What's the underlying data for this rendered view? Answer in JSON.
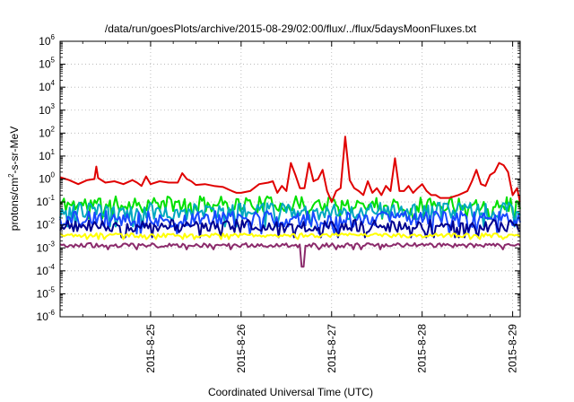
{
  "chart_data": {
    "type": "line",
    "title": "/data/run/goesPlots/archive/2015-08-29/02:00/flux/../flux/5daysMoonFluxes.txt",
    "xlabel": "Coordinated Universal Time (UTC)",
    "ylabel_parts": {
      "pre": "protons/cm",
      "sup": "2",
      "post": "-s-sr-MeV"
    },
    "x_range": [
      "2015-08-24 00:00",
      "2015-08-29 02:00"
    ],
    "x_tick_labels": [
      "2015-8-25",
      "2015-8-26",
      "2015-8-27",
      "2015-8-28",
      "2015-8-29"
    ],
    "x_tick_days": [
      1,
      2,
      3,
      4,
      5
    ],
    "y_scale": "log",
    "ylim": [
      1e-06,
      1000000.0
    ],
    "y_tick_exponents": [
      -6,
      -5,
      -4,
      -3,
      -2,
      -1,
      0,
      1,
      2,
      3,
      4,
      5,
      6
    ],
    "y_tick_base": "10",
    "grid": true,
    "series": [
      {
        "color": "#e00000",
        "values": [
          [
            0.0,
            1.2
          ],
          [
            0.1,
            0.9
          ],
          [
            0.2,
            0.6
          ],
          [
            0.3,
            0.9
          ],
          [
            0.38,
            1.0
          ],
          [
            0.4,
            3.5
          ],
          [
            0.42,
            1.1
          ],
          [
            0.5,
            0.7
          ],
          [
            0.6,
            0.8
          ],
          [
            0.7,
            0.6
          ],
          [
            0.8,
            0.9
          ],
          [
            0.85,
            0.7
          ],
          [
            0.9,
            0.5
          ],
          [
            0.95,
            1.3
          ],
          [
            1.0,
            0.6
          ],
          [
            1.1,
            0.8
          ],
          [
            1.2,
            0.7
          ],
          [
            1.3,
            0.7
          ],
          [
            1.35,
            1.8
          ],
          [
            1.4,
            1.0
          ],
          [
            1.45,
            0.8
          ],
          [
            1.5,
            0.55
          ],
          [
            1.6,
            0.6
          ],
          [
            1.7,
            0.5
          ],
          [
            1.8,
            0.45
          ],
          [
            1.9,
            0.3
          ],
          [
            1.95,
            0.25
          ],
          [
            2.0,
            0.25
          ],
          [
            2.1,
            0.3
          ],
          [
            2.2,
            0.6
          ],
          [
            2.3,
            0.7
          ],
          [
            2.35,
            0.8
          ],
          [
            2.4,
            0.25
          ],
          [
            2.45,
            0.5
          ],
          [
            2.5,
            0.3
          ],
          [
            2.55,
            5.0
          ],
          [
            2.6,
            1.5
          ],
          [
            2.65,
            0.4
          ],
          [
            2.7,
            0.4
          ],
          [
            2.75,
            5.0
          ],
          [
            2.8,
            0.8
          ],
          [
            2.85,
            1.0
          ],
          [
            2.9,
            2.5
          ],
          [
            2.95,
            0.3
          ],
          [
            3.0,
            0.1
          ],
          [
            3.05,
            0.3
          ],
          [
            3.1,
            0.4
          ],
          [
            3.15,
            70
          ],
          [
            3.2,
            0.9
          ],
          [
            3.25,
            0.4
          ],
          [
            3.3,
            0.3
          ],
          [
            3.35,
            0.2
          ],
          [
            3.4,
            0.8
          ],
          [
            3.45,
            0.25
          ],
          [
            3.5,
            0.4
          ],
          [
            3.55,
            0.2
          ],
          [
            3.6,
            0.5
          ],
          [
            3.65,
            0.3
          ],
          [
            3.7,
            8.0
          ],
          [
            3.75,
            0.3
          ],
          [
            3.8,
            0.3
          ],
          [
            3.85,
            0.5
          ],
          [
            3.9,
            0.25
          ],
          [
            3.95,
            0.4
          ],
          [
            4.0,
            0.6
          ],
          [
            4.05,
            0.3
          ],
          [
            4.1,
            0.2
          ],
          [
            4.15,
            0.2
          ],
          [
            4.2,
            0.15
          ],
          [
            4.3,
            0.15
          ],
          [
            4.4,
            0.2
          ],
          [
            4.5,
            0.3
          ],
          [
            4.55,
            0.8
          ],
          [
            4.6,
            2.5
          ],
          [
            4.65,
            0.6
          ],
          [
            4.7,
            0.5
          ],
          [
            4.75,
            1.5
          ],
          [
            4.8,
            2.0
          ],
          [
            4.85,
            5.0
          ],
          [
            4.9,
            4.0
          ],
          [
            4.95,
            2.0
          ],
          [
            5.0,
            0.2
          ],
          [
            5.05,
            0.4
          ],
          [
            5.08,
            0.1
          ]
        ]
      },
      {
        "color": "#00e000",
        "baseline": 0.08,
        "spread": 0.7,
        "seed": 11
      },
      {
        "color": "#00a8c0",
        "baseline": 0.04,
        "spread": 0.75,
        "seed": 23
      },
      {
        "color": "#1848ff",
        "baseline": 0.018,
        "spread": 0.7,
        "seed": 37
      },
      {
        "color": "#000090",
        "baseline": 0.009,
        "spread": 0.55,
        "seed": 51
      },
      {
        "color": "#ffff00",
        "baseline": 0.0035,
        "spread": 0.18,
        "seed": 67
      },
      {
        "color": "#8b2a6b",
        "baseline": 0.0013,
        "spread": 0.2,
        "seed": 83,
        "dip": [
          2.68,
          0.00015
        ]
      }
    ]
  }
}
